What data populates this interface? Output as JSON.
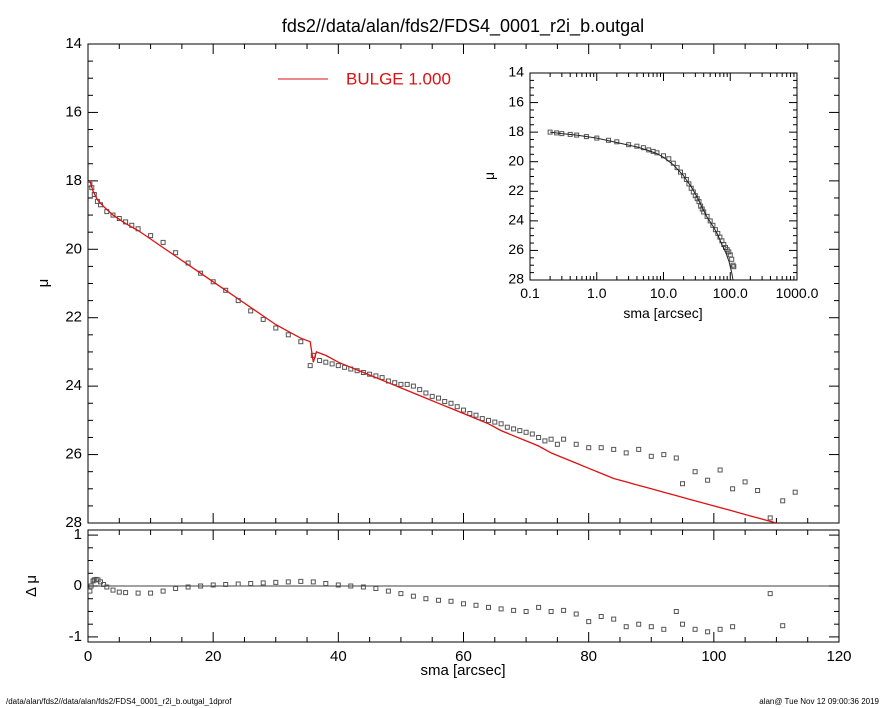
{
  "title": "fds2//data/alan/fds2/FDS4_0001_r2i_b.outgal",
  "footer_left": "/data/alan/fds2//data/alan/fds2/FDS4_0001_r2i_b.outgal_1dprof",
  "footer_right": "alan@  Tue Nov 12 09:00:36 2019",
  "colors": {
    "model": "#dd1111",
    "data": "#555555",
    "axes": "#000000"
  },
  "chart_data": [
    {
      "id": "main-profile",
      "type": "scatter",
      "title": "fds2//data/alan/fds2/FDS4_0001_r2i_b.outgal",
      "xlabel": "",
      "ylabel": "μ",
      "xlim": [
        0,
        120
      ],
      "ylim": [
        28,
        14
      ],
      "y_inverted": true,
      "xticks": [
        0,
        20,
        40,
        60,
        80,
        100,
        120
      ],
      "yticks": [
        14,
        16,
        18,
        20,
        22,
        24,
        26,
        28
      ],
      "legend": {
        "label": "BULGE  1.000",
        "placement": "top-center"
      },
      "series": [
        {
          "name": "",
          "kind": "points",
          "x": [
            0.3,
            0.6,
            1,
            1.5,
            2,
            3,
            4,
            5,
            6,
            7,
            8,
            10,
            12,
            14,
            16,
            18,
            20,
            22,
            24,
            26,
            28,
            30,
            32,
            34,
            35.5,
            36,
            37,
            38,
            39,
            40,
            41,
            42,
            43,
            44,
            45,
            46,
            47,
            48,
            49,
            50,
            51,
            52,
            53,
            54,
            55,
            56,
            57,
            58,
            59,
            60,
            61,
            62,
            63,
            64,
            65,
            66,
            67,
            68,
            69,
            70,
            71,
            72,
            73,
            74,
            75,
            76,
            78,
            80,
            82,
            84,
            86,
            88,
            90,
            92,
            94,
            95,
            97,
            99,
            101,
            103,
            105,
            107,
            109,
            111,
            113
          ],
          "y": [
            18.1,
            18.2,
            18.4,
            18.6,
            18.7,
            18.9,
            19.0,
            19.1,
            19.2,
            19.3,
            19.4,
            19.6,
            19.8,
            20.1,
            20.4,
            20.7,
            20.95,
            21.2,
            21.5,
            21.8,
            22.05,
            22.3,
            22.5,
            22.7,
            23.4,
            23.1,
            23.25,
            23.3,
            23.35,
            23.4,
            23.45,
            23.5,
            23.55,
            23.6,
            23.65,
            23.7,
            23.75,
            23.85,
            23.9,
            23.95,
            23.95,
            24.0,
            24.1,
            24.2,
            24.3,
            24.35,
            24.45,
            24.5,
            24.6,
            24.7,
            24.8,
            24.85,
            24.95,
            25.0,
            25.05,
            25.1,
            25.2,
            25.25,
            25.3,
            25.35,
            25.4,
            25.5,
            25.6,
            25.55,
            25.7,
            25.55,
            25.7,
            25.8,
            25.8,
            25.85,
            25.95,
            25.85,
            26.05,
            26.0,
            26.1,
            26.85,
            26.5,
            26.75,
            26.45,
            27.0,
            26.8,
            27.05,
            27.85,
            27.35,
            27.1
          ]
        },
        {
          "name": "BULGE  1.000",
          "kind": "line",
          "x": [
            0.3,
            0.8,
            1.5,
            2.5,
            4,
            6,
            8,
            10,
            12,
            14,
            16,
            18,
            20,
            22,
            24,
            26,
            28,
            30,
            32,
            34,
            35.5,
            36,
            36.5,
            38,
            40,
            42,
            44,
            46,
            48,
            50,
            52,
            54,
            56,
            58,
            60,
            62,
            64,
            66,
            68,
            70,
            72,
            74,
            76,
            78,
            80,
            82,
            84,
            86,
            88,
            90,
            92,
            94,
            96,
            98,
            100,
            102,
            104,
            106,
            108,
            110
          ],
          "y": [
            18.0,
            18.3,
            18.55,
            18.75,
            19.0,
            19.25,
            19.45,
            19.7,
            19.95,
            20.2,
            20.45,
            20.7,
            20.95,
            21.2,
            21.45,
            21.7,
            21.95,
            22.2,
            22.4,
            22.6,
            22.7,
            23.3,
            23.0,
            23.1,
            23.3,
            23.45,
            23.6,
            23.75,
            23.9,
            24.05,
            24.2,
            24.35,
            24.5,
            24.65,
            24.8,
            24.95,
            25.1,
            25.3,
            25.45,
            25.6,
            25.75,
            25.95,
            26.1,
            26.25,
            26.4,
            26.55,
            26.7,
            26.8,
            26.9,
            27.0,
            27.1,
            27.2,
            27.3,
            27.4,
            27.5,
            27.6,
            27.7,
            27.8,
            27.9,
            28.0
          ]
        }
      ]
    },
    {
      "id": "residual",
      "type": "scatter",
      "xlabel": "sma [arcsec]",
      "ylabel": "Δ μ",
      "xlim": [
        0,
        120
      ],
      "ylim": [
        -1.1,
        1.1
      ],
      "xticks": [
        0,
        20,
        40,
        60,
        80,
        100,
        120
      ],
      "yticks": [
        -1,
        0,
        1
      ],
      "zero_line": true,
      "series": [
        {
          "name": "",
          "kind": "points",
          "x": [
            0.3,
            0.5,
            0.8,
            1.0,
            1.3,
            1.6,
            2.0,
            2.5,
            3,
            4,
            5,
            6,
            8,
            10,
            12,
            14,
            16,
            18,
            20,
            22,
            24,
            26,
            28,
            30,
            32,
            34,
            36,
            38,
            40,
            42,
            44,
            46,
            48,
            50,
            52,
            54,
            56,
            58,
            60,
            62,
            64,
            66,
            68,
            70,
            72,
            74,
            76,
            78,
            80,
            82,
            84,
            86,
            88,
            90,
            92,
            94,
            95,
            97,
            99,
            101,
            103,
            109,
            111
          ],
          "y": [
            -0.1,
            0.0,
            0.1,
            0.12,
            0.13,
            0.12,
            0.08,
            0.03,
            -0.02,
            -0.08,
            -0.12,
            -0.13,
            -0.14,
            -0.14,
            -0.1,
            -0.05,
            -0.02,
            0.0,
            0.02,
            0.03,
            0.04,
            0.05,
            0.06,
            0.07,
            0.08,
            0.09,
            0.08,
            0.05,
            0.02,
            0.0,
            -0.02,
            -0.05,
            -0.1,
            -0.15,
            -0.2,
            -0.25,
            -0.28,
            -0.3,
            -0.35,
            -0.38,
            -0.42,
            -0.45,
            -0.48,
            -0.5,
            -0.42,
            -0.5,
            -0.48,
            -0.55,
            -0.7,
            -0.6,
            -0.65,
            -0.8,
            -0.75,
            -0.8,
            -0.85,
            -0.5,
            -0.75,
            -0.85,
            -0.9,
            -0.85,
            -0.8,
            -0.15,
            -0.78
          ]
        }
      ]
    },
    {
      "id": "inset-log",
      "type": "scatter",
      "xlabel": "sma [arcsec]",
      "ylabel": "μ",
      "x_scale": "log",
      "xlim": [
        0.1,
        1000
      ],
      "ylim": [
        28,
        14
      ],
      "y_inverted": true,
      "xticks": [
        0.1,
        1,
        10,
        100,
        1000
      ],
      "xtick_labels": [
        "0.1",
        "1.0",
        "10.0",
        "100.0",
        "1000.0"
      ],
      "yticks": [
        14,
        16,
        18,
        20,
        22,
        24,
        26,
        28
      ],
      "series": [
        {
          "name": "",
          "kind": "points",
          "x": [
            0.2,
            0.25,
            0.3,
            0.4,
            0.5,
            0.7,
            1,
            1.5,
            2,
            3,
            4,
            5,
            6,
            7,
            8,
            10,
            12,
            14,
            16,
            18,
            20,
            22,
            24,
            26,
            28,
            30,
            32,
            34,
            36,
            38,
            40,
            45,
            50,
            55,
            60,
            65,
            70,
            75,
            80,
            85,
            90,
            95,
            100,
            105,
            110,
            113
          ],
          "y": [
            18.0,
            18.05,
            18.1,
            18.15,
            18.2,
            18.3,
            18.4,
            18.55,
            18.65,
            18.85,
            18.95,
            19.05,
            19.2,
            19.3,
            19.4,
            19.6,
            19.8,
            20.1,
            20.4,
            20.7,
            20.95,
            21.2,
            21.5,
            21.8,
            22.05,
            22.3,
            22.5,
            22.7,
            23.0,
            23.2,
            23.4,
            23.7,
            24.0,
            24.3,
            24.6,
            24.85,
            25.1,
            25.35,
            25.6,
            25.8,
            25.95,
            26.1,
            26.3,
            26.6,
            27.0,
            27.1
          ]
        },
        {
          "name": "",
          "kind": "line",
          "x": [
            0.2,
            0.3,
            0.5,
            1,
            2,
            4,
            6,
            8,
            10,
            14,
            20,
            26,
            32,
            38,
            45,
            55,
            65,
            75,
            85,
            95,
            105,
            110
          ],
          "y": [
            18.0,
            18.1,
            18.2,
            18.4,
            18.7,
            19.0,
            19.25,
            19.45,
            19.7,
            20.2,
            20.95,
            21.7,
            22.4,
            23.1,
            23.75,
            24.35,
            24.95,
            25.6,
            26.1,
            26.7,
            27.5,
            28.0
          ]
        }
      ]
    }
  ]
}
